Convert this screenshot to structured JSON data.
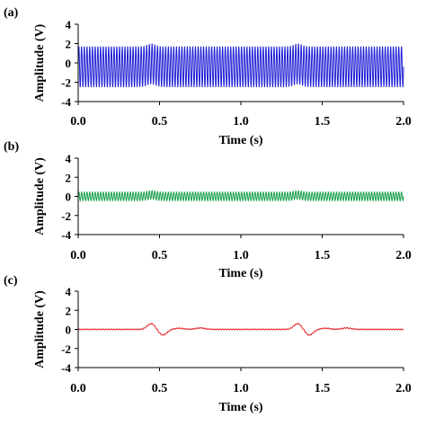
{
  "chart_data": [
    {
      "type": "line",
      "panel_label": "(a)",
      "xlabel": "Time (s)",
      "ylabel": "Amplitude (V)",
      "xlim": [
        0,
        2
      ],
      "ylim": [
        -4,
        4
      ],
      "x_ticks": [
        0,
        0.5,
        1,
        1.5,
        2
      ],
      "x_tick_labels": [
        "0.0",
        "0.5",
        "1.0",
        "1.5",
        "2.0"
      ],
      "y_ticks": [
        -4,
        -2,
        0,
        2,
        4
      ],
      "y_tick_labels": [
        "-4",
        "-2",
        "0",
        "2",
        "4"
      ],
      "grid": false,
      "series": [
        {
          "color": "#1f1fd6",
          "signal": {
            "frequency_hz": 60,
            "mean": -0.4,
            "amplitude": 2.1,
            "bumps": [
              {
                "center_s": 0.45,
                "width_s": 0.035,
                "offset": 0.3
              },
              {
                "center_s": 1.35,
                "width_s": 0.035,
                "offset": 0.3
              }
            ]
          },
          "values_peak_to_peak": [
            -2.6,
            1.8
          ]
        }
      ]
    },
    {
      "type": "line",
      "panel_label": "(b)",
      "xlabel": "Time (s)",
      "ylabel": "Amplitude (V)",
      "xlim": [
        0,
        2
      ],
      "ylim": [
        -4,
        4
      ],
      "x_ticks": [
        0,
        0.5,
        1,
        1.5,
        2
      ],
      "x_tick_labels": [
        "0.0",
        "0.5",
        "1.0",
        "1.5",
        "2.0"
      ],
      "y_ticks": [
        -4,
        -2,
        0,
        2,
        4
      ],
      "y_tick_labels": [
        "-4",
        "-2",
        "0",
        "2",
        "4"
      ],
      "grid": false,
      "series": [
        {
          "color": "#1aa04a",
          "signal": {
            "frequency_hz": 60,
            "mean": 0.0,
            "amplitude": 0.45,
            "bumps": [
              {
                "center_s": 0.45,
                "width_s": 0.035,
                "offset": 0.15
              },
              {
                "center_s": 1.35,
                "width_s": 0.035,
                "offset": 0.15
              }
            ]
          },
          "values_peak_to_peak": [
            -0.5,
            0.6
          ]
        }
      ]
    },
    {
      "type": "line",
      "panel_label": "(c)",
      "xlabel": "Time (s)",
      "ylabel": "Amplitude (V)",
      "xlim": [
        0,
        2
      ],
      "ylim": [
        -4,
        4
      ],
      "x_ticks": [
        0,
        0.5,
        1,
        1.5,
        2
      ],
      "x_tick_labels": [
        "0.0",
        "0.5",
        "1.0",
        "1.5",
        "2.0"
      ],
      "y_ticks": [
        -4,
        -2,
        0,
        2,
        4
      ],
      "y_tick_labels": [
        "-4",
        "-2",
        "0",
        "2",
        "4"
      ],
      "grid": false,
      "series": [
        {
          "color": "#e31a1c",
          "signal": {
            "frequency_hz": 60,
            "mean": 0.0,
            "amplitude": 0.05,
            "bumps": [
              {
                "center_s": 0.45,
                "width_s": 0.035,
                "offset": 0.6
              },
              {
                "center_s": 0.52,
                "width_s": 0.035,
                "offset": -0.6
              },
              {
                "center_s": 0.62,
                "width_s": 0.04,
                "offset": 0.12
              },
              {
                "center_s": 0.75,
                "width_s": 0.04,
                "offset": 0.15
              },
              {
                "center_s": 1.35,
                "width_s": 0.035,
                "offset": 0.6
              },
              {
                "center_s": 1.42,
                "width_s": 0.035,
                "offset": -0.6
              },
              {
                "center_s": 1.52,
                "width_s": 0.04,
                "offset": 0.12
              },
              {
                "center_s": 1.65,
                "width_s": 0.04,
                "offset": 0.15
              }
            ]
          },
          "values_peak_to_peak": [
            -0.55,
            0.65
          ]
        }
      ]
    }
  ]
}
